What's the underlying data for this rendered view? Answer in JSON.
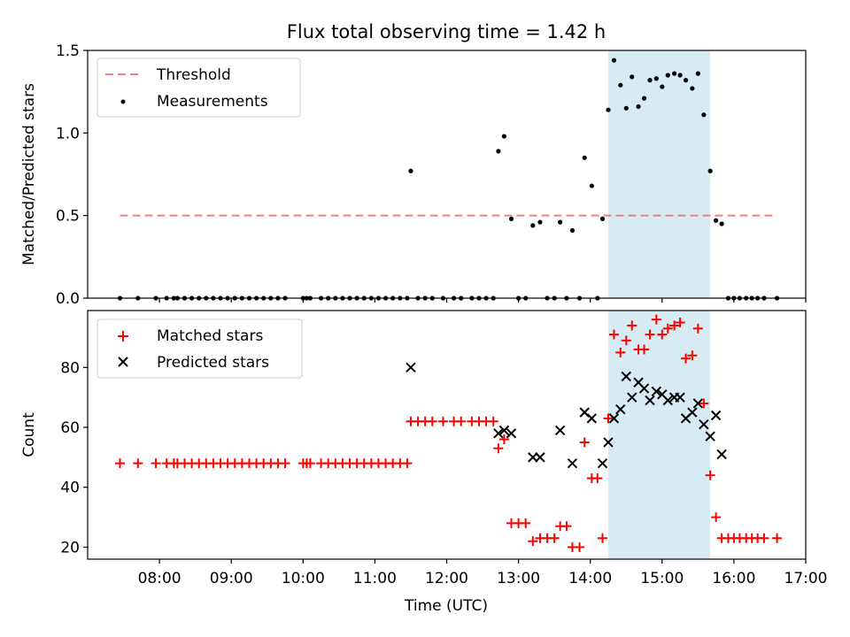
{
  "title": "Flux total observing time = 1.42 h",
  "colors": {
    "threshold": "#f08080",
    "measurement": "#000000",
    "matched": "#ff0000",
    "predicted": "#000000",
    "highlight": "#add8e6"
  },
  "chart_data": [
    {
      "type": "scatter",
      "ylabel": "Matched/Predicted stars",
      "xlabel": "",
      "xlim_hours": [
        7.0,
        17.0
      ],
      "ylim": [
        0,
        1.5
      ],
      "yticks": [
        0,
        0.5,
        1.0,
        1.5
      ],
      "ytick_labels": [
        "0.0",
        "0.5",
        "1.0",
        "1.5"
      ],
      "legend_position": "top-left",
      "highlight_span_hours": [
        14.25,
        15.67
      ],
      "threshold": {
        "name": "Threshold",
        "y": 0.5,
        "x_range_hours": [
          7.45,
          16.6
        ]
      },
      "series": [
        {
          "name": "Measurements",
          "points": [
            [
              7.45,
              0
            ],
            [
              7.7,
              0
            ],
            [
              7.95,
              0
            ],
            [
              8.1,
              0
            ],
            [
              8.2,
              0
            ],
            [
              8.25,
              0
            ],
            [
              8.35,
              0
            ],
            [
              8.45,
              0
            ],
            [
              8.55,
              0
            ],
            [
              8.65,
              0
            ],
            [
              8.75,
              0
            ],
            [
              8.85,
              0
            ],
            [
              8.95,
              0
            ],
            [
              9.05,
              0
            ],
            [
              9.15,
              0
            ],
            [
              9.25,
              0
            ],
            [
              9.35,
              0
            ],
            [
              9.45,
              0
            ],
            [
              9.55,
              0
            ],
            [
              9.65,
              0
            ],
            [
              9.75,
              0
            ],
            [
              10.0,
              0
            ],
            [
              10.05,
              0
            ],
            [
              10.1,
              0
            ],
            [
              10.25,
              0
            ],
            [
              10.35,
              0
            ],
            [
              10.45,
              0
            ],
            [
              10.55,
              0
            ],
            [
              10.65,
              0
            ],
            [
              10.75,
              0
            ],
            [
              10.85,
              0
            ],
            [
              10.95,
              0
            ],
            [
              11.05,
              0
            ],
            [
              11.15,
              0
            ],
            [
              11.25,
              0
            ],
            [
              11.35,
              0
            ],
            [
              11.45,
              0
            ],
            [
              11.5,
              0.77
            ],
            [
              11.6,
              0
            ],
            [
              11.7,
              0
            ],
            [
              11.8,
              0
            ],
            [
              11.95,
              0
            ],
            [
              12.1,
              0
            ],
            [
              12.2,
              0
            ],
            [
              12.35,
              0
            ],
            [
              12.45,
              0
            ],
            [
              12.55,
              0
            ],
            [
              12.65,
              0
            ],
            [
              12.72,
              0.89
            ],
            [
              12.8,
              0.98
            ],
            [
              12.9,
              0.48
            ],
            [
              13.0,
              0
            ],
            [
              13.1,
              0
            ],
            [
              13.2,
              0.44
            ],
            [
              13.3,
              0.46
            ],
            [
              13.4,
              0
            ],
            [
              13.5,
              0
            ],
            [
              13.58,
              0.46
            ],
            [
              13.67,
              0
            ],
            [
              13.75,
              0.41
            ],
            [
              13.85,
              0
            ],
            [
              13.92,
              0.85
            ],
            [
              14.02,
              0.68
            ],
            [
              14.1,
              0
            ],
            [
              14.17,
              0.48
            ],
            [
              14.25,
              1.14
            ],
            [
              14.33,
              1.44
            ],
            [
              14.42,
              1.29
            ],
            [
              14.5,
              1.15
            ],
            [
              14.58,
              1.34
            ],
            [
              14.67,
              1.16
            ],
            [
              14.75,
              1.21
            ],
            [
              14.83,
              1.32
            ],
            [
              14.92,
              1.33
            ],
            [
              15.0,
              1.28
            ],
            [
              15.08,
              1.35
            ],
            [
              15.17,
              1.36
            ],
            [
              15.25,
              1.35
            ],
            [
              15.33,
              1.32
            ],
            [
              15.42,
              1.27
            ],
            [
              15.5,
              1.36
            ],
            [
              15.58,
              1.11
            ],
            [
              15.67,
              0.77
            ],
            [
              15.75,
              0.47
            ],
            [
              15.83,
              0.45
            ],
            [
              15.92,
              0
            ],
            [
              16.0,
              0
            ],
            [
              16.08,
              0
            ],
            [
              16.17,
              0
            ],
            [
              16.25,
              0
            ],
            [
              16.33,
              0
            ],
            [
              16.42,
              0
            ],
            [
              16.6,
              0
            ]
          ]
        }
      ]
    },
    {
      "type": "scatter",
      "ylabel": "Count",
      "xlabel": "Time (UTC)",
      "xlim_hours": [
        7.0,
        17.0
      ],
      "xticks_hours": [
        8,
        9,
        10,
        11,
        12,
        13,
        14,
        15,
        16,
        17
      ],
      "xtick_labels": [
        "08:00",
        "09:00",
        "10:00",
        "11:00",
        "12:00",
        "13:00",
        "14:00",
        "15:00",
        "16:00",
        "17:00"
      ],
      "ylim": [
        16,
        99
      ],
      "yticks": [
        20,
        40,
        60,
        80
      ],
      "ytick_labels": [
        "20",
        "40",
        "60",
        "80"
      ],
      "legend_position": "top-left",
      "highlight_span_hours": [
        14.25,
        15.67
      ],
      "series": [
        {
          "name": "Matched stars",
          "marker": "plus",
          "points": [
            [
              7.45,
              48
            ],
            [
              7.7,
              48
            ],
            [
              7.95,
              48
            ],
            [
              8.1,
              48
            ],
            [
              8.2,
              48
            ],
            [
              8.25,
              48
            ],
            [
              8.35,
              48
            ],
            [
              8.45,
              48
            ],
            [
              8.55,
              48
            ],
            [
              8.65,
              48
            ],
            [
              8.75,
              48
            ],
            [
              8.85,
              48
            ],
            [
              8.95,
              48
            ],
            [
              9.05,
              48
            ],
            [
              9.15,
              48
            ],
            [
              9.25,
              48
            ],
            [
              9.35,
              48
            ],
            [
              9.45,
              48
            ],
            [
              9.55,
              48
            ],
            [
              9.65,
              48
            ],
            [
              9.75,
              48
            ],
            [
              10.0,
              48
            ],
            [
              10.05,
              48
            ],
            [
              10.1,
              48
            ],
            [
              10.25,
              48
            ],
            [
              10.35,
              48
            ],
            [
              10.45,
              48
            ],
            [
              10.55,
              48
            ],
            [
              10.65,
              48
            ],
            [
              10.75,
              48
            ],
            [
              10.85,
              48
            ],
            [
              10.95,
              48
            ],
            [
              11.05,
              48
            ],
            [
              11.15,
              48
            ],
            [
              11.25,
              48
            ],
            [
              11.35,
              48
            ],
            [
              11.45,
              48
            ],
            [
              11.5,
              62
            ],
            [
              11.6,
              62
            ],
            [
              11.7,
              62
            ],
            [
              11.8,
              62
            ],
            [
              11.95,
              62
            ],
            [
              12.1,
              62
            ],
            [
              12.2,
              62
            ],
            [
              12.35,
              62
            ],
            [
              12.45,
              62
            ],
            [
              12.55,
              62
            ],
            [
              12.65,
              62
            ],
            [
              12.72,
              53
            ],
            [
              12.8,
              56
            ],
            [
              12.9,
              28
            ],
            [
              13.0,
              28
            ],
            [
              13.1,
              28
            ],
            [
              13.2,
              22
            ],
            [
              13.3,
              23
            ],
            [
              13.4,
              23
            ],
            [
              13.5,
              23
            ],
            [
              13.58,
              27
            ],
            [
              13.67,
              27
            ],
            [
              13.75,
              20
            ],
            [
              13.85,
              20
            ],
            [
              13.92,
              55
            ],
            [
              14.02,
              43
            ],
            [
              14.1,
              43
            ],
            [
              14.17,
              23
            ],
            [
              14.25,
              63
            ],
            [
              14.33,
              91
            ],
            [
              14.42,
              85
            ],
            [
              14.5,
              89
            ],
            [
              14.58,
              94
            ],
            [
              14.67,
              86
            ],
            [
              14.75,
              86
            ],
            [
              14.83,
              91
            ],
            [
              14.92,
              96
            ],
            [
              15.0,
              91
            ],
            [
              15.08,
              93
            ],
            [
              15.17,
              94
            ],
            [
              15.25,
              95
            ],
            [
              15.33,
              83
            ],
            [
              15.42,
              84
            ],
            [
              15.5,
              93
            ],
            [
              15.58,
              68
            ],
            [
              15.67,
              44
            ],
            [
              15.75,
              30
            ],
            [
              15.83,
              23
            ],
            [
              15.92,
              23
            ],
            [
              16.0,
              23
            ],
            [
              16.08,
              23
            ],
            [
              16.17,
              23
            ],
            [
              16.25,
              23
            ],
            [
              16.33,
              23
            ],
            [
              16.42,
              23
            ],
            [
              16.6,
              23
            ]
          ]
        },
        {
          "name": "Predicted stars",
          "marker": "x",
          "points": [
            [
              11.5,
              80
            ],
            [
              12.72,
              58
            ],
            [
              12.8,
              59
            ],
            [
              12.9,
              58
            ],
            [
              13.2,
              50
            ],
            [
              13.3,
              50
            ],
            [
              13.58,
              59
            ],
            [
              13.75,
              48
            ],
            [
              13.92,
              65
            ],
            [
              14.02,
              63
            ],
            [
              14.17,
              48
            ],
            [
              14.25,
              55
            ],
            [
              14.33,
              63
            ],
            [
              14.42,
              66
            ],
            [
              14.5,
              77
            ],
            [
              14.58,
              70
            ],
            [
              14.67,
              75
            ],
            [
              14.75,
              73
            ],
            [
              14.83,
              69
            ],
            [
              14.92,
              72
            ],
            [
              15.0,
              71
            ],
            [
              15.08,
              69
            ],
            [
              15.17,
              70
            ],
            [
              15.25,
              70
            ],
            [
              15.33,
              63
            ],
            [
              15.42,
              65
            ],
            [
              15.5,
              68
            ],
            [
              15.58,
              61
            ],
            [
              15.67,
              57
            ],
            [
              15.75,
              64
            ],
            [
              15.83,
              51
            ]
          ]
        }
      ]
    }
  ]
}
